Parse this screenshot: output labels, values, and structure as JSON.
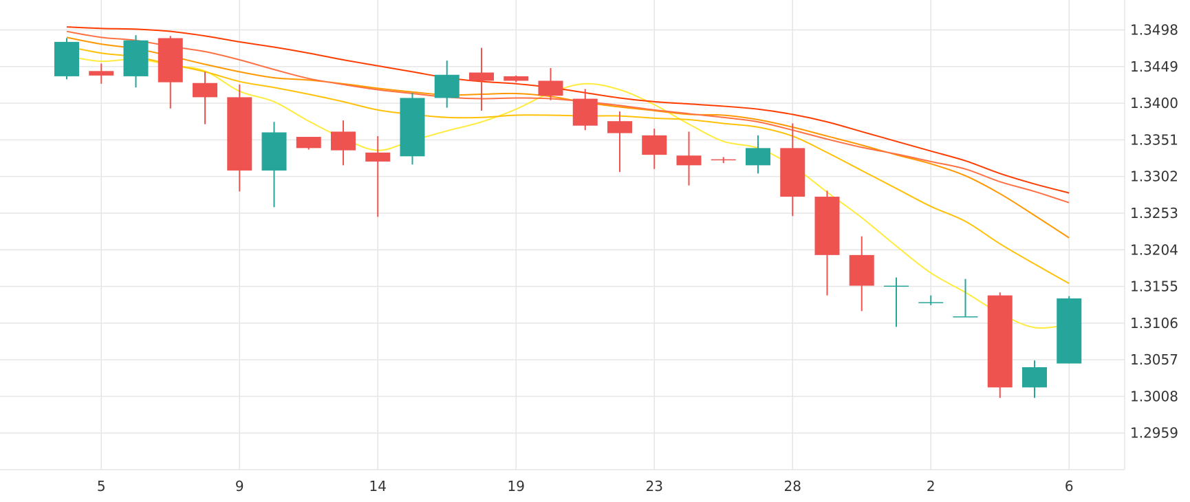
{
  "chart_data": {
    "type": "candlestick",
    "title": "",
    "xlabel": "",
    "ylabel": "",
    "y_axis_position": "right",
    "grid": true,
    "legend": "none",
    "colors": {
      "up": "#26a69a",
      "down": "#ef5350",
      "grid": "#e6e6e6",
      "ma5": "#ffeb3b",
      "ma10": "#ffc107",
      "ma20": "#ff9800",
      "ma30": "#ff7043",
      "ma50": "#ff3d00"
    },
    "ylim": [
      1.291,
      1.3538
    ],
    "y_ticks": [
      "1.2959",
      "1.3008",
      "1.3057",
      "1.3106",
      "1.3155",
      "1.3204",
      "1.3253",
      "1.3302",
      "1.3351",
      "1.3400",
      "1.3449",
      "1.3498"
    ],
    "x_ticks": [
      {
        "label": "5",
        "index": 1
      },
      {
        "label": "9",
        "index": 5
      },
      {
        "label": "14",
        "index": 9
      },
      {
        "label": "19",
        "index": 13
      },
      {
        "label": "23",
        "index": 17
      },
      {
        "label": "28",
        "index": 21
      },
      {
        "label": "2",
        "index": 25
      },
      {
        "label": "6",
        "index": 29
      }
    ],
    "candles": [
      {
        "open": 1.3436,
        "high": 1.3487,
        "low": 1.3432,
        "close": 1.3482
      },
      {
        "open": 1.3443,
        "high": 1.3453,
        "low": 1.3426,
        "close": 1.3437
      },
      {
        "open": 1.3436,
        "high": 1.3491,
        "low": 1.3421,
        "close": 1.3484
      },
      {
        "open": 1.3487,
        "high": 1.349,
        "low": 1.3393,
        "close": 1.3428
      },
      {
        "open": 1.3427,
        "high": 1.3442,
        "low": 1.3372,
        "close": 1.3408
      },
      {
        "open": 1.3408,
        "high": 1.3425,
        "low": 1.3282,
        "close": 1.331
      },
      {
        "open": 1.331,
        "high": 1.3375,
        "low": 1.3261,
        "close": 1.3361
      },
      {
        "open": 1.3355,
        "high": 1.3355,
        "low": 1.3338,
        "close": 1.334
      },
      {
        "open": 1.3362,
        "high": 1.3377,
        "low": 1.3317,
        "close": 1.3337
      },
      {
        "open": 1.3334,
        "high": 1.3356,
        "low": 1.3248,
        "close": 1.3322
      },
      {
        "open": 1.3329,
        "high": 1.3414,
        "low": 1.3318,
        "close": 1.3407
      },
      {
        "open": 1.3407,
        "high": 1.3457,
        "low": 1.3394,
        "close": 1.3438
      },
      {
        "open": 1.3441,
        "high": 1.3474,
        "low": 1.339,
        "close": 1.343
      },
      {
        "open": 1.3436,
        "high": 1.3437,
        "low": 1.3428,
        "close": 1.343
      },
      {
        "open": 1.343,
        "high": 1.3447,
        "low": 1.3404,
        "close": 1.341
      },
      {
        "open": 1.3406,
        "high": 1.3419,
        "low": 1.3364,
        "close": 1.337
      },
      {
        "open": 1.3376,
        "high": 1.3389,
        "low": 1.3308,
        "close": 1.336
      },
      {
        "open": 1.3357,
        "high": 1.3366,
        "low": 1.3312,
        "close": 1.3331
      },
      {
        "open": 1.333,
        "high": 1.3362,
        "low": 1.329,
        "close": 1.3317
      },
      {
        "open": 1.3325,
        "high": 1.3328,
        "low": 1.332,
        "close": 1.3324
      },
      {
        "open": 1.3317,
        "high": 1.3357,
        "low": 1.3306,
        "close": 1.334
      },
      {
        "open": 1.334,
        "high": 1.3373,
        "low": 1.3249,
        "close": 1.3275
      },
      {
        "open": 1.3275,
        "high": 1.3283,
        "low": 1.3143,
        "close": 1.3197
      },
      {
        "open": 1.3197,
        "high": 1.3222,
        "low": 1.3122,
        "close": 1.3156
      },
      {
        "open": 1.3156,
        "high": 1.3167,
        "low": 1.3101,
        "close": 1.3156
      },
      {
        "open": 1.3134,
        "high": 1.3143,
        "low": 1.313,
        "close": 1.3134
      },
      {
        "open": 1.3115,
        "high": 1.3165,
        "low": 1.3115,
        "close": 1.3115
      },
      {
        "open": 1.3143,
        "high": 1.3147,
        "low": 1.3006,
        "close": 1.302
      },
      {
        "open": 1.302,
        "high": 1.3056,
        "low": 1.3006,
        "close": 1.3047
      },
      {
        "open": 1.3052,
        "high": 1.3142,
        "low": 1.3052,
        "close": 1.3139
      }
    ],
    "series": [
      {
        "key": "ma5",
        "values": [
          1.3463,
          1.3456,
          1.3459,
          1.3451,
          1.3443,
          1.3416,
          1.3402,
          1.3376,
          1.3353,
          1.3337,
          1.335,
          1.3363,
          1.3375,
          1.3392,
          1.3414,
          1.3426,
          1.3418,
          1.3398,
          1.3372,
          1.3349,
          1.334,
          1.3316,
          1.3281,
          1.3247,
          1.3209,
          1.3173,
          1.3147,
          1.3119,
          1.31,
          1.3104
        ]
      },
      {
        "key": "ma10",
        "values": [
          1.3476,
          1.3467,
          1.3462,
          1.3452,
          1.3442,
          1.3429,
          1.3421,
          1.3412,
          1.3402,
          1.3391,
          1.3385,
          1.3381,
          1.3381,
          1.3384,
          1.3384,
          1.3383,
          1.3383,
          1.338,
          1.3378,
          1.3373,
          1.3368,
          1.3356,
          1.3334,
          1.331,
          1.3286,
          1.3262,
          1.3242,
          1.3212,
          1.3185,
          1.3159
        ]
      },
      {
        "key": "ma20",
        "values": [
          1.3488,
          1.3479,
          1.3473,
          1.3463,
          1.3452,
          1.3442,
          1.3434,
          1.3431,
          1.3426,
          1.342,
          1.3415,
          1.3411,
          1.3412,
          1.3413,
          1.3409,
          1.3401,
          1.3395,
          1.339,
          1.3385,
          1.3384,
          1.3378,
          1.3368,
          1.3356,
          1.3344,
          1.3331,
          1.3319,
          1.3303,
          1.3279,
          1.325,
          1.322
        ]
      },
      {
        "key": "ma30",
        "values": [
          1.3496,
          1.3488,
          1.3484,
          1.3476,
          1.3469,
          1.3458,
          1.3445,
          1.3433,
          1.3425,
          1.3418,
          1.3413,
          1.3408,
          1.3406,
          1.3407,
          1.3406,
          1.3402,
          1.3397,
          1.3391,
          1.3386,
          1.3381,
          1.3375,
          1.3364,
          1.3352,
          1.3341,
          1.3332,
          1.3322,
          1.3312,
          1.3295,
          1.3282,
          1.3267
        ]
      },
      {
        "key": "ma50",
        "values": [
          1.3502,
          1.35,
          1.3499,
          1.3496,
          1.349,
          1.3482,
          1.3475,
          1.3467,
          1.3458,
          1.345,
          1.3442,
          1.3434,
          1.3429,
          1.3426,
          1.3421,
          1.3414,
          1.3407,
          1.3402,
          1.3399,
          1.3396,
          1.3392,
          1.3385,
          1.3375,
          1.3362,
          1.3349,
          1.3336,
          1.3323,
          1.3306,
          1.3292,
          1.328
        ]
      }
    ]
  }
}
